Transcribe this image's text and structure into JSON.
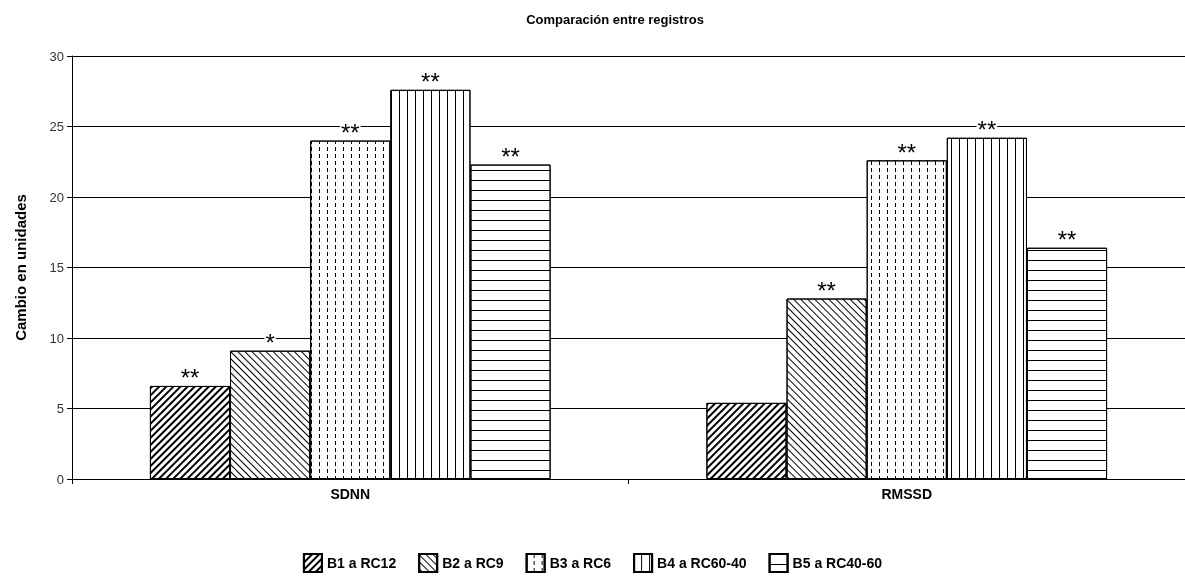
{
  "chart_data": {
    "type": "bar",
    "title": "Comparación entre registros",
    "ylabel": "Cambio en unidades",
    "categories": [
      "SDNN",
      "RMSSD"
    ],
    "series": [
      {
        "name": "B1 a RC12",
        "color": "#ffffff",
        "values": [
          6.6,
          5.4
        ],
        "value_labels": [
          "**",
          null
        ]
      },
      {
        "name": "B2 a RC9",
        "color": "#ffffff",
        "values": [
          9.1,
          12.8
        ],
        "value_labels": [
          "*",
          "**"
        ]
      },
      {
        "name": "B3 a RC6",
        "color": "#ffffff",
        "values": [
          24.0,
          22.6
        ],
        "value_labels": [
          "**",
          "**"
        ]
      },
      {
        "name": "B4 a RC60-40",
        "color": "#ffffff",
        "values": [
          27.6,
          24.2
        ],
        "value_labels": [
          "**",
          "**"
        ]
      },
      {
        "name": "B5 a RC40-60",
        "color": "#ffffff",
        "values": [
          22.3,
          16.4
        ],
        "value_labels": [
          "**",
          "**"
        ]
      }
    ],
    "ylim": [
      0,
      30
    ],
    "yticks": [
      0,
      5,
      10,
      15,
      20,
      25,
      30
    ],
    "grid": "y",
    "legend": "bottom"
  }
}
